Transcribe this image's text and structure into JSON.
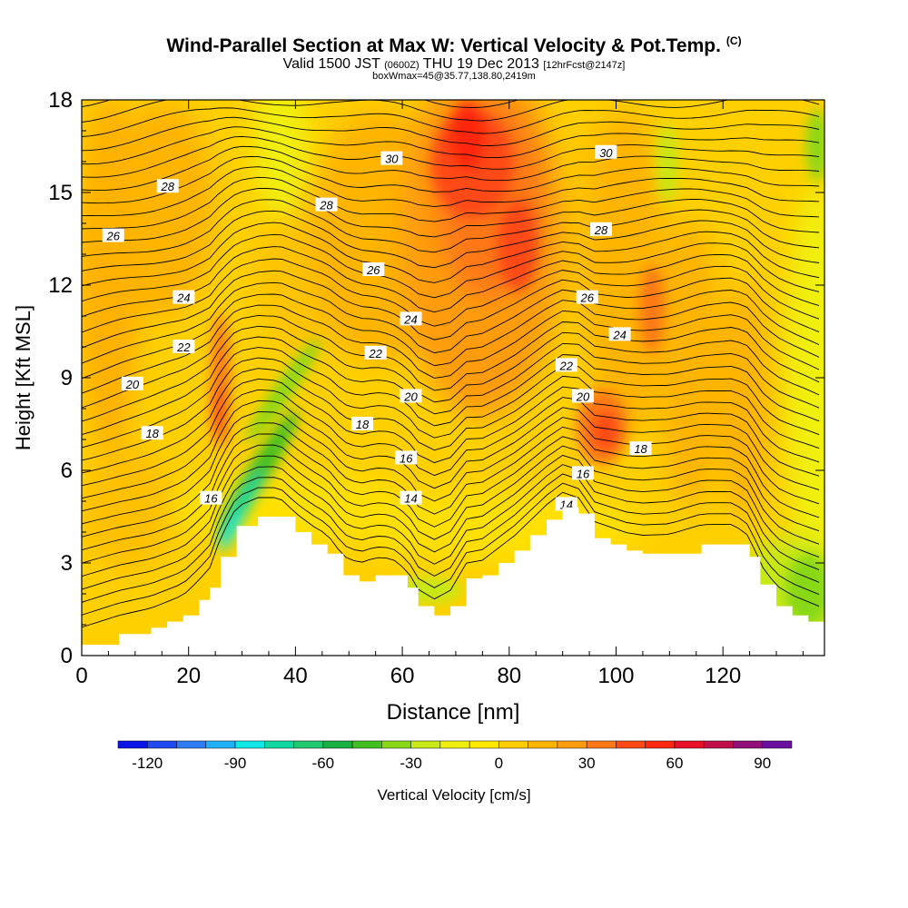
{
  "header": {
    "title": "Wind-Parallel Section at Max W: Vertical Velocity & Pot.Temp.",
    "copyright": "(C)",
    "valid_prefix": "Valid 1500 JST",
    "valid_utc": "(0600Z)",
    "valid_date": "THU 19 Dec 2013",
    "forecast": "[12hrFcst@2147z]",
    "box_info": "boxWmax=45@35.77,138.80,2419m"
  },
  "chart_data": {
    "type": "heatmap",
    "title": "Wind-Parallel Section at Max W: Vertical Velocity & Pot.Temp.",
    "xlabel": "Distance [nm]",
    "ylabel": "Height [Kft MSL]",
    "xlim": [
      0,
      139
    ],
    "ylim": [
      0,
      18
    ],
    "x_ticks": [
      0,
      20,
      40,
      60,
      80,
      100,
      120
    ],
    "y_ticks": [
      0,
      3,
      6,
      9,
      12,
      15,
      18
    ],
    "colorbar": {
      "label": "Vertical Velocity [cm/s]",
      "ticks": [
        -120,
        -90,
        -60,
        -30,
        0,
        30,
        60,
        90
      ],
      "min": -130,
      "max": 100,
      "colors": [
        "#0a14e6",
        "#1f4af0",
        "#2f7cf5",
        "#20b0f8",
        "#10e8e8",
        "#10d8a0",
        "#20c870",
        "#18b040",
        "#40c020",
        "#88d818",
        "#c8e818",
        "#f0f010",
        "#ffe800",
        "#ffcc00",
        "#ffb400",
        "#ff9c10",
        "#ff7818",
        "#ff4a18",
        "#ff2810",
        "#e81028",
        "#c0104a",
        "#901078",
        "#6a10a0"
      ]
    },
    "theta_labels": [
      {
        "x": 5.9,
        "y": 13.6,
        "text": "26"
      },
      {
        "x": 16.1,
        "y": 15.2,
        "text": "28"
      },
      {
        "x": 19.1,
        "y": 11.6,
        "text": "24"
      },
      {
        "x": 19.1,
        "y": 10.0,
        "text": "22"
      },
      {
        "x": 9.5,
        "y": 8.8,
        "text": "20"
      },
      {
        "x": 13.2,
        "y": 7.2,
        "text": "18"
      },
      {
        "x": 24.2,
        "y": 5.1,
        "text": "16"
      },
      {
        "x": 58.0,
        "y": 16.1,
        "text": "30"
      },
      {
        "x": 45.8,
        "y": 14.6,
        "text": "28"
      },
      {
        "x": 54.6,
        "y": 12.5,
        "text": "26"
      },
      {
        "x": 61.6,
        "y": 10.9,
        "text": "24"
      },
      {
        "x": 55.0,
        "y": 9.8,
        "text": "22"
      },
      {
        "x": 61.6,
        "y": 8.4,
        "text": "20"
      },
      {
        "x": 52.5,
        "y": 7.5,
        "text": "18"
      },
      {
        "x": 60.7,
        "y": 6.4,
        "text": "16"
      },
      {
        "x": 61.6,
        "y": 5.1,
        "text": "14"
      },
      {
        "x": 98.1,
        "y": 16.3,
        "text": "30"
      },
      {
        "x": 97.2,
        "y": 13.8,
        "text": "28"
      },
      {
        "x": 94.6,
        "y": 11.6,
        "text": "26"
      },
      {
        "x": 100.7,
        "y": 10.4,
        "text": "24"
      },
      {
        "x": 90.7,
        "y": 9.4,
        "text": "22"
      },
      {
        "x": 93.8,
        "y": 8.4,
        "text": "20"
      },
      {
        "x": 104.6,
        "y": 6.7,
        "text": "18"
      },
      {
        "x": 93.8,
        "y": 5.9,
        "text": "16"
      },
      {
        "x": 90.7,
        "y": 4.9,
        "text": "14"
      }
    ],
    "terrain": [
      {
        "x": 0,
        "y": 0.35
      },
      {
        "x": 7,
        "y": 0.7
      },
      {
        "x": 13,
        "y": 0.9
      },
      {
        "x": 16,
        "y": 1.1
      },
      {
        "x": 19,
        "y": 1.3
      },
      {
        "x": 22,
        "y": 1.8
      },
      {
        "x": 24,
        "y": 2.2
      },
      {
        "x": 26,
        "y": 3.2
      },
      {
        "x": 29,
        "y": 4.2
      },
      {
        "x": 33,
        "y": 4.5
      },
      {
        "x": 37,
        "y": 4.5
      },
      {
        "x": 40,
        "y": 4.0
      },
      {
        "x": 43,
        "y": 3.6
      },
      {
        "x": 46,
        "y": 3.3
      },
      {
        "x": 49,
        "y": 2.6
      },
      {
        "x": 52,
        "y": 2.4
      },
      {
        "x": 55,
        "y": 2.6
      },
      {
        "x": 58,
        "y": 2.6
      },
      {
        "x": 61,
        "y": 2.2
      },
      {
        "x": 63,
        "y": 1.6
      },
      {
        "x": 66,
        "y": 1.3
      },
      {
        "x": 69,
        "y": 1.6
      },
      {
        "x": 72,
        "y": 2.5
      },
      {
        "x": 75,
        "y": 2.6
      },
      {
        "x": 78,
        "y": 3.0
      },
      {
        "x": 81,
        "y": 3.4
      },
      {
        "x": 84,
        "y": 3.9
      },
      {
        "x": 87,
        "y": 4.4
      },
      {
        "x": 90,
        "y": 4.8
      },
      {
        "x": 93,
        "y": 4.6
      },
      {
        "x": 96,
        "y": 3.8
      },
      {
        "x": 99,
        "y": 3.6
      },
      {
        "x": 102,
        "y": 3.4
      },
      {
        "x": 105,
        "y": 3.3
      },
      {
        "x": 110,
        "y": 3.3
      },
      {
        "x": 116,
        "y": 3.6
      },
      {
        "x": 122,
        "y": 3.6
      },
      {
        "x": 125,
        "y": 3.2
      },
      {
        "x": 127,
        "y": 2.3
      },
      {
        "x": 130,
        "y": 1.6
      },
      {
        "x": 133,
        "y": 1.3
      },
      {
        "x": 136,
        "y": 1.1
      },
      {
        "x": 139,
        "y": 0.9
      }
    ]
  }
}
